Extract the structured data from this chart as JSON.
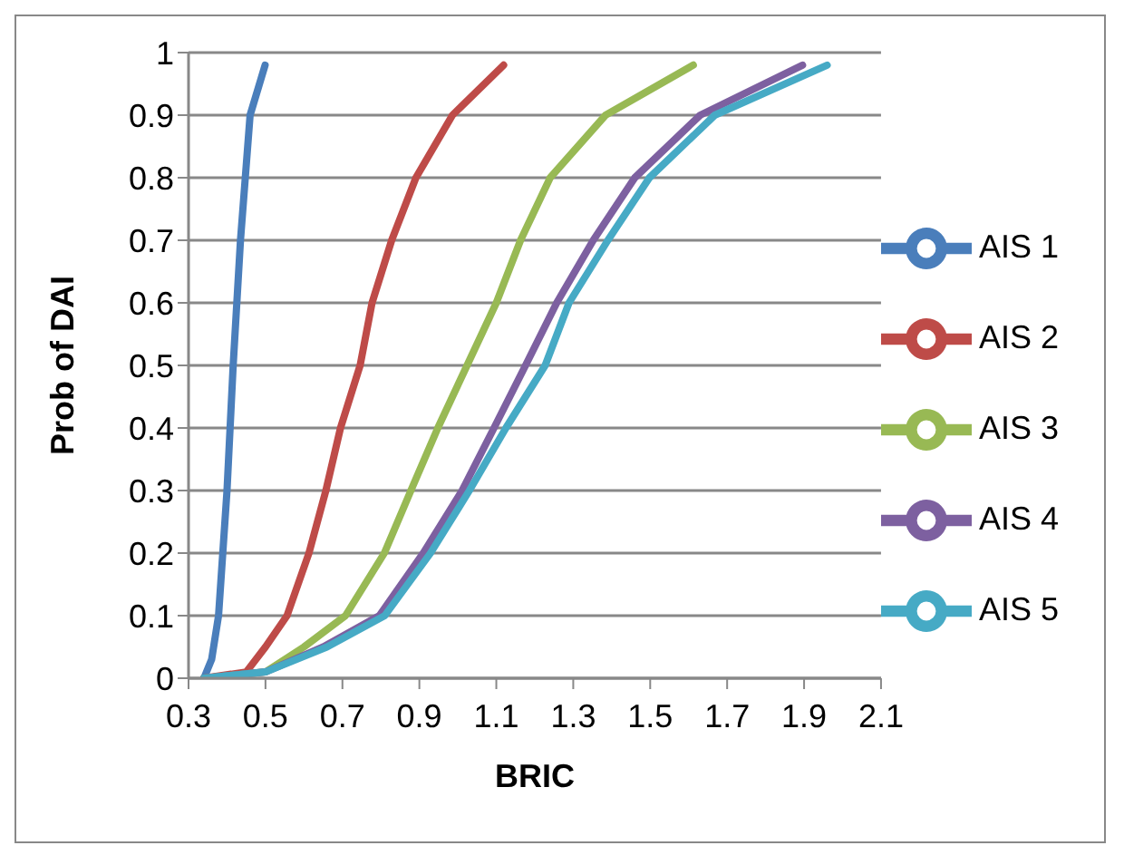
{
  "chart_data": {
    "type": "line",
    "xlabel": "BRIC",
    "ylabel": "Prob of DAI",
    "xlim": [
      0.3,
      2.1
    ],
    "xticks": [
      0.3,
      0.5,
      0.7,
      0.9,
      1.1,
      1.3,
      1.5,
      1.7,
      1.9,
      2.1
    ],
    "ylim": [
      0,
      1
    ],
    "yticks": [
      0,
      0.1,
      0.2,
      0.3,
      0.4,
      0.5,
      0.6,
      0.7,
      0.8,
      0.9,
      1
    ],
    "grid": "y",
    "legend": "right",
    "marker": "none",
    "line_style": "solid",
    "series": [
      {
        "name": "AIS 1",
        "color": "#4a7ebb",
        "x": [
          0.34,
          0.36,
          0.378,
          0.4,
          0.416,
          0.435,
          0.46,
          0.499
        ],
        "values": [
          0,
          0.03,
          0.1,
          0.3,
          0.5,
          0.7,
          0.9,
          0.98
        ]
      },
      {
        "name": "AIS 2",
        "color": "#be4b48",
        "x": [
          0.34,
          0.45,
          0.5,
          0.556,
          0.613,
          0.657,
          0.695,
          0.746,
          0.777,
          0.828,
          0.891,
          0.986,
          1.119
        ],
        "values": [
          0,
          0.01,
          0.05,
          0.1,
          0.2,
          0.3,
          0.4,
          0.5,
          0.6,
          0.7,
          0.8,
          0.9,
          0.98
        ]
      },
      {
        "name": "AIS 3",
        "color": "#98b954",
        "x": [
          0.34,
          0.5,
          0.6,
          0.708,
          0.809,
          0.878,
          0.948,
          1.024,
          1.1,
          1.163,
          1.24,
          1.384,
          1.612
        ],
        "values": [
          0,
          0.01,
          0.05,
          0.1,
          0.2,
          0.3,
          0.4,
          0.5,
          0.6,
          0.7,
          0.8,
          0.9,
          0.98
        ]
      },
      {
        "name": "AIS 4",
        "color": "#7d60a0",
        "x": [
          0.34,
          0.5,
          0.65,
          0.796,
          0.91,
          1.011,
          1.094,
          1.176,
          1.257,
          1.352,
          1.46,
          1.63,
          1.896
        ],
        "values": [
          0,
          0.01,
          0.05,
          0.1,
          0.2,
          0.3,
          0.4,
          0.5,
          0.6,
          0.7,
          0.8,
          0.9,
          0.98
        ]
      },
      {
        "name": "AIS 5",
        "color": "#46aac5",
        "x": [
          0.34,
          0.5,
          0.66,
          0.81,
          0.929,
          1.03,
          1.125,
          1.227,
          1.289,
          1.39,
          1.498,
          1.668,
          1.96
        ],
        "values": [
          0,
          0.01,
          0.05,
          0.1,
          0.2,
          0.3,
          0.4,
          0.5,
          0.6,
          0.7,
          0.8,
          0.9,
          0.98
        ]
      }
    ]
  }
}
